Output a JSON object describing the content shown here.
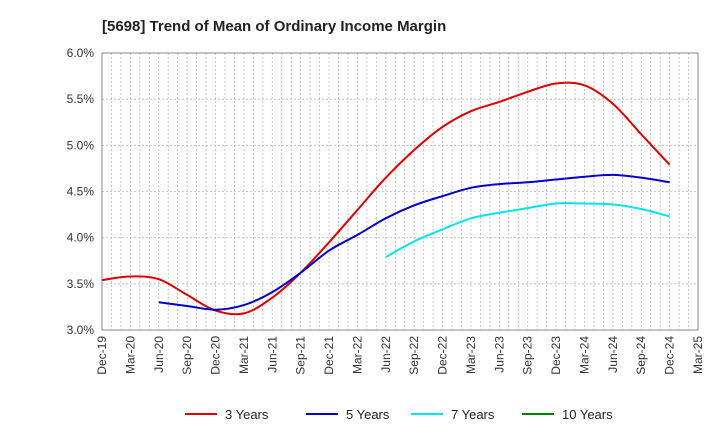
{
  "chart_data": {
    "type": "line",
    "title": "[5698]  Trend of Mean of Ordinary Income Margin",
    "xlabel": "",
    "ylabel": "",
    "ylim": [
      3.0,
      6.0
    ],
    "y_ticks": [
      "3.0%",
      "3.5%",
      "4.0%",
      "4.5%",
      "5.0%",
      "5.5%",
      "6.0%"
    ],
    "y_tick_values": [
      3.0,
      3.5,
      4.0,
      4.5,
      5.0,
      5.5,
      6.0
    ],
    "x_ticks": [
      "Dec-19",
      "Mar-20",
      "Jun-20",
      "Sep-20",
      "Dec-20",
      "Mar-21",
      "Jun-21",
      "Sep-21",
      "Dec-21",
      "Mar-22",
      "Jun-22",
      "Sep-22",
      "Dec-22",
      "Mar-23",
      "Jun-23",
      "Sep-23",
      "Dec-23",
      "Mar-24",
      "Jun-24",
      "Sep-24",
      "Dec-24",
      "Mar-25"
    ],
    "grid": true,
    "legend_position": "bottom",
    "series": [
      {
        "name": "3 Years",
        "color": "#dd0000",
        "values": [
          3.54,
          3.58,
          3.55,
          3.38,
          3.21,
          3.18,
          3.35,
          3.62,
          3.95,
          4.3,
          4.65,
          4.95,
          5.2,
          5.37,
          5.47,
          5.58,
          5.67,
          5.65,
          5.45,
          5.12,
          4.79,
          null
        ]
      },
      {
        "name": "5 Years",
        "color": "#0000cc",
        "values": [
          null,
          null,
          3.3,
          3.26,
          3.22,
          3.27,
          3.41,
          3.62,
          3.86,
          4.03,
          4.21,
          4.35,
          4.45,
          4.54,
          4.58,
          4.6,
          4.63,
          4.66,
          4.68,
          4.65,
          4.6,
          null
        ]
      },
      {
        "name": "7 Years",
        "color": "#00e5ee",
        "values": [
          null,
          null,
          null,
          null,
          null,
          null,
          null,
          null,
          null,
          null,
          3.79,
          3.96,
          4.09,
          4.21,
          4.27,
          4.32,
          4.37,
          4.37,
          4.36,
          4.31,
          4.23,
          null
        ]
      },
      {
        "name": "10 Years",
        "color": "#008000",
        "values": [
          null,
          null,
          null,
          null,
          null,
          null,
          null,
          null,
          null,
          null,
          null,
          null,
          null,
          null,
          null,
          null,
          null,
          null,
          null,
          null,
          null,
          null
        ]
      }
    ]
  }
}
